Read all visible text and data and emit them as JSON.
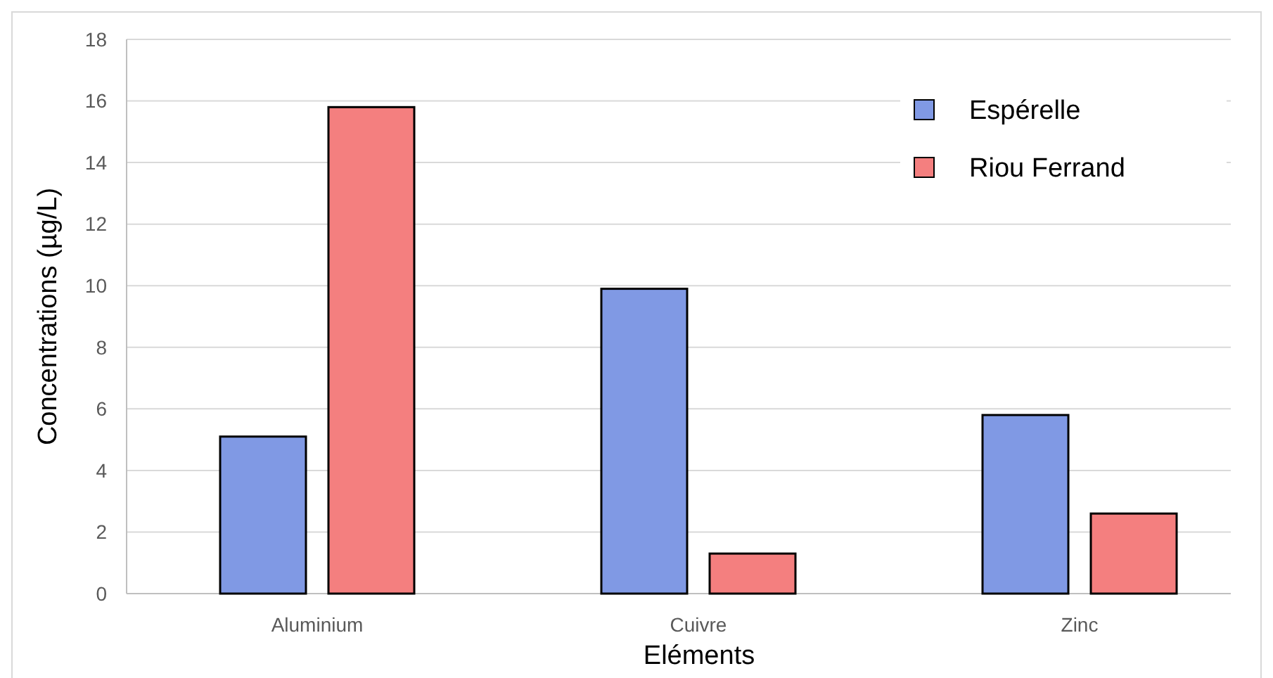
{
  "chart_data": {
    "type": "bar",
    "xlabel": "Eléments",
    "ylabel": "Concentrations (µg/L)",
    "categories": [
      "Aluminium",
      "Cuivre",
      "Zinc"
    ],
    "series": [
      {
        "name": "Espérelle",
        "color": "#8099e4",
        "values": [
          5.1,
          9.9,
          5.8
        ]
      },
      {
        "name": "Riou Ferrand",
        "color": "#f47f7f",
        "values": [
          15.8,
          1.3,
          2.6
        ]
      }
    ],
    "ylim": [
      0,
      18
    ],
    "yticks": [
      0,
      2,
      4,
      6,
      8,
      10,
      12,
      14,
      16,
      18
    ],
    "grid": "y",
    "legend": "top right"
  }
}
